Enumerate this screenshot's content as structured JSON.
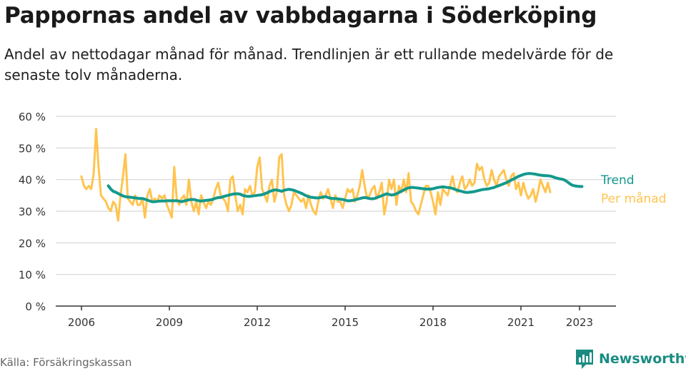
{
  "title": "Pappornas andel av vabbdagarna i Söderköping",
  "subtitle": "Andel av nettodagar månad för månad. Trendlinjen är ett rullande medelvärde för de senaste tolv månaderna.",
  "source": "Källa: Försäkringskassan",
  "brand": {
    "name": "Newsworthy",
    "icon": "newsworthy-logo-icon"
  },
  "colors": {
    "trend": "#13998c",
    "monthly": "#ffc44f",
    "grid": "#d6d6d6",
    "axis": "#333333"
  },
  "chart_data": {
    "type": "line",
    "x_start": "2006-01",
    "x_frequency": "monthly",
    "x_ticks": [
      "2006",
      "2009",
      "2012",
      "2015",
      "2018",
      "2021",
      "2023"
    ],
    "y_ticks": [
      "0 %",
      "10 %",
      "20 %",
      "30 %",
      "40 %",
      "50 %",
      "60 %"
    ],
    "ylim": [
      0,
      60
    ],
    "grid": true,
    "legend": "right",
    "series": [
      {
        "name": "Per månad",
        "values": [
          41,
          38,
          37,
          38,
          37,
          42,
          56,
          44,
          35,
          34,
          33,
          31,
          30,
          33,
          32,
          27,
          35,
          41,
          48,
          34,
          33,
          32,
          35,
          32,
          32,
          34,
          28,
          35,
          37,
          33,
          34,
          33,
          35,
          34,
          35,
          32,
          30,
          28,
          44,
          34,
          32,
          34,
          35,
          32,
          40,
          33,
          30,
          33,
          29,
          35,
          33,
          31,
          33,
          32,
          34,
          37,
          39,
          35,
          34,
          33,
          30,
          40,
          41,
          35,
          30,
          32,
          29,
          37,
          36,
          38,
          35,
          36,
          44,
          47,
          37,
          35,
          33,
          38,
          40,
          33,
          36,
          47,
          48,
          35,
          32,
          30,
          32,
          36,
          35,
          34,
          33,
          34,
          31,
          35,
          32,
          30,
          29,
          33,
          36,
          34,
          35,
          37,
          34,
          31,
          35,
          33,
          33,
          31,
          34,
          37,
          36,
          37,
          33,
          35,
          38,
          43,
          38,
          34,
          35,
          37,
          38,
          34,
          36,
          39,
          29,
          33,
          40,
          37,
          40,
          32,
          38,
          36,
          40,
          36,
          42,
          33,
          32,
          30,
          29,
          32,
          35,
          38,
          38,
          36,
          33,
          29,
          36,
          32,
          37,
          36,
          35,
          38,
          41,
          37,
          36,
          39,
          41,
          37,
          38,
          40,
          38,
          39,
          45,
          43,
          44,
          40,
          38,
          39,
          43,
          40,
          38,
          41,
          42,
          43,
          40,
          38,
          41,
          42,
          37,
          39,
          35,
          39,
          36,
          34,
          35,
          37,
          33,
          36,
          40,
          38,
          36,
          39,
          36
        ],
        "color": "#ffc44f"
      },
      {
        "name": "Trend",
        "x_start": "2006-12",
        "values": [
          38,
          37,
          36.3,
          36,
          35.6,
          35.2,
          34.8,
          34.6,
          34.5,
          34.4,
          34.3,
          34.2,
          34.1,
          34.0,
          34.0,
          33.8,
          33.5,
          33.2,
          33.0,
          33.0,
          33.1,
          33.2,
          33.2,
          33.2,
          33.3,
          33.3,
          33.3,
          33.3,
          33.3,
          33.2,
          33.0,
          33.2,
          33.4,
          33.6,
          33.7,
          33.7,
          33.5,
          33.3,
          33.2,
          33.3,
          33.4,
          33.5,
          33.6,
          33.8,
          34.1,
          34.3,
          34.3,
          34.6,
          34.8,
          35.0,
          35.2,
          35.4,
          35.5,
          35.5,
          35.4,
          35.0,
          34.8,
          34.7,
          34.7,
          34.8,
          34.9,
          35.0,
          35.1,
          35.2,
          35.5,
          35.8,
          36.2,
          36.5,
          36.7,
          36.7,
          36.5,
          36.3,
          36.6,
          36.8,
          36.9,
          36.8,
          36.6,
          36.3,
          36.0,
          35.7,
          35.3,
          34.9,
          34.6,
          34.4,
          34.3,
          34.2,
          34.2,
          34.3,
          34.5,
          34.6,
          34.3,
          34.1,
          34.0,
          34.0,
          33.9,
          33.8,
          33.7,
          33.5,
          33.3,
          33.3,
          33.4,
          33.6,
          33.8,
          34.0,
          34.2,
          34.3,
          34.2,
          34.0,
          33.9,
          34.0,
          34.3,
          34.6,
          34.9,
          35.2,
          35.5,
          35.3,
          35.1,
          35.2,
          35.5,
          35.9,
          36.3,
          36.7,
          37.1,
          37.4,
          37.5,
          37.5,
          37.4,
          37.3,
          37.2,
          37.1,
          37.0,
          37.0,
          37.0,
          37.1,
          37.3,
          37.5,
          37.6,
          37.7,
          37.6,
          37.5,
          37.4,
          37.2,
          36.9,
          36.6,
          36.4,
          36.2,
          36.0,
          35.9,
          36.0,
          36.1,
          36.2,
          36.4,
          36.6,
          36.8,
          36.9,
          37.0,
          37.1,
          37.3,
          37.5,
          37.8,
          38.1,
          38.4,
          38.7,
          39.0,
          39.4,
          39.8,
          40.2,
          40.6,
          41.0,
          41.3,
          41.6,
          41.8,
          41.9,
          41.9,
          41.8,
          41.7,
          41.5,
          41.4,
          41.3,
          41.2,
          41.2,
          41.1,
          40.9,
          40.6,
          40.4,
          40.2,
          40.1,
          39.8,
          39.3,
          38.7,
          38.2,
          38.0,
          37.9,
          37.8,
          37.8
        ],
        "color": "#13998c"
      }
    ]
  }
}
